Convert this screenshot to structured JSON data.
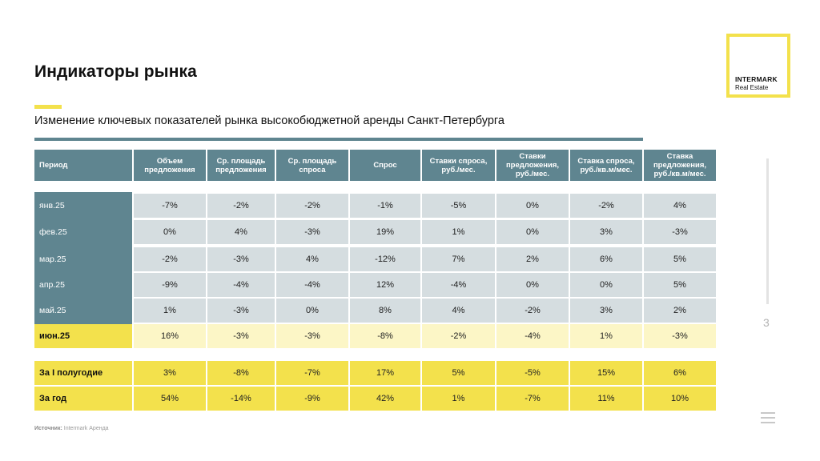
{
  "page": {
    "title": "Индикаторы рынка",
    "subtitle": "Изменение ключевых показателей рынка высокобюджетной аренды Санкт-Петербурга",
    "page_number": "3",
    "source_label": "Источник:",
    "source_value": "Intermark Аренда"
  },
  "logo": {
    "line1": "INTERMARK",
    "line2": "Real Estate"
  },
  "colors": {
    "header": "#5f8590",
    "accent": "#f3e14c",
    "row": "#d5dde0",
    "highlight_row": "#fcf6c6"
  },
  "table": {
    "headers": [
      "Период",
      "Объем предложения",
      "Ср. площадь предложения",
      "Ср. площадь спроса",
      "Спрос",
      "Ставки спроса, руб./мес.",
      "Ставки предложения, руб./мес.",
      "Ставка спроса, руб./кв.м/мес.",
      "Ставка предложения, руб./кв.м/мес."
    ],
    "rows": [
      {
        "label": "янв.25",
        "style": "normal",
        "values": [
          "-7%",
          "-2%",
          "-2%",
          "-1%",
          "-5%",
          "0%",
          "-2%",
          "4%"
        ]
      },
      {
        "label": "фев.25",
        "style": "normal",
        "values": [
          "0%",
          "4%",
          "-3%",
          "19%",
          "1%",
          "0%",
          "3%",
          "-3%"
        ]
      },
      {
        "label": "мар.25",
        "style": "normal",
        "values": [
          "-2%",
          "-3%",
          "4%",
          "-12%",
          "7%",
          "2%",
          "6%",
          "5%"
        ]
      },
      {
        "label": "апр.25",
        "style": "normal",
        "values": [
          "-9%",
          "-4%",
          "-4%",
          "12%",
          "-4%",
          "0%",
          "0%",
          "5%"
        ]
      },
      {
        "label": "май.25",
        "style": "normal",
        "values": [
          "1%",
          "-3%",
          "0%",
          "8%",
          "4%",
          "-2%",
          "3%",
          "2%"
        ]
      },
      {
        "label": "июн.25",
        "style": "highlight",
        "values": [
          "16%",
          "-3%",
          "-3%",
          "-8%",
          "-2%",
          "-4%",
          "1%",
          "-3%"
        ]
      },
      {
        "label": "За I полугодие",
        "style": "summary",
        "values": [
          "3%",
          "-8%",
          "-7%",
          "17%",
          "5%",
          "-5%",
          "15%",
          "6%"
        ]
      },
      {
        "label": "За год",
        "style": "summary",
        "values": [
          "54%",
          "-14%",
          "-9%",
          "42%",
          "1%",
          "-7%",
          "11%",
          "10%"
        ]
      }
    ]
  }
}
